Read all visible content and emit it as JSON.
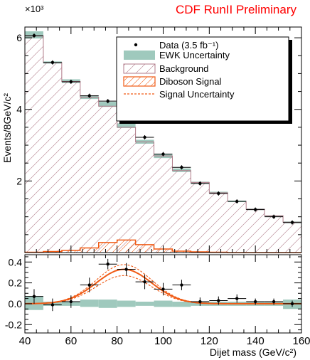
{
  "header": {
    "title": "CDF RunII Preliminary",
    "title_color": "#ff0000"
  },
  "chart_data": [
    {
      "type": "area",
      "panel": "main",
      "ylabel": "Events/8GeV/c²",
      "y_multiplier": "×10³",
      "ylim": [
        0,
        6.3
      ],
      "yticks": [
        2,
        4,
        6
      ],
      "xlim": [
        40,
        160
      ],
      "bin_edges": [
        40,
        48,
        56,
        64,
        72,
        80,
        88,
        96,
        104,
        112,
        120,
        128,
        136,
        144,
        152,
        160
      ],
      "series": [
        {
          "name": "Data (3.5 fb⁻¹)",
          "style": "points",
          "x": [
            44,
            52,
            60,
            68,
            76,
            84,
            92,
            100,
            108,
            116,
            124,
            132,
            140,
            148,
            156
          ],
          "y": [
            6.06,
            5.31,
            4.77,
            4.38,
            4.23,
            3.76,
            3.22,
            2.75,
            2.38,
            1.93,
            1.65,
            1.43,
            1.2,
            1.0,
            0.84
          ],
          "yerr": 0.06
        },
        {
          "name": "EWK Uncertainty",
          "style": "band",
          "color": "#9fc9bd",
          "lower": [
            5.98,
            5.28,
            4.74,
            4.29,
            4.07,
            3.48,
            3.04,
            2.64,
            2.25,
            1.93,
            1.64,
            1.41,
            1.19,
            1.01,
            0.82
          ],
          "upper": [
            6.18,
            5.34,
            4.84,
            4.37,
            4.21,
            3.61,
            3.15,
            2.76,
            2.35,
            1.98,
            1.7,
            1.45,
            1.23,
            1.04,
            0.87
          ]
        },
        {
          "name": "Background",
          "style": "hatched-step",
          "color": "#b07a88",
          "values": [
            6.05,
            5.31,
            4.78,
            4.34,
            4.09,
            3.5,
            3.09,
            2.7,
            2.29,
            1.96,
            1.67,
            1.43,
            1.21,
            1.03,
            0.85
          ]
        },
        {
          "name": "Diboson Signal",
          "style": "hatched-step",
          "color": "#f05a14",
          "values": [
            0.01,
            0.03,
            0.06,
            0.13,
            0.28,
            0.35,
            0.22,
            0.1,
            0.04,
            0.02,
            0.01,
            0.0,
            0.0,
            0.0,
            0.0
          ]
        },
        {
          "name": "Signal Uncertainty",
          "style": "dashed",
          "color": "#f05a14"
        }
      ]
    },
    {
      "type": "scatter",
      "panel": "ratio",
      "xlabel": "Dijet mass (GeV/c²)",
      "xlim": [
        40,
        160
      ],
      "xticks": [
        40,
        60,
        80,
        100,
        120,
        140,
        160
      ],
      "ylim": [
        -0.28,
        0.47
      ],
      "yticks": [
        -0.2,
        0.0,
        0.2,
        0.4
      ],
      "ytick_labels": [
        "-0.2",
        "0.0",
        "0.2",
        "0.4"
      ],
      "points": {
        "x": [
          44,
          52,
          60,
          68,
          76,
          84,
          92,
          100,
          108,
          116,
          124,
          132,
          140,
          148,
          156
        ],
        "y": [
          0.07,
          -0.01,
          0.02,
          0.18,
          0.38,
          0.33,
          0.21,
          0.14,
          0.18,
          0.02,
          0.03,
          0.05,
          0.02,
          0.02,
          0.0
        ],
        "yerr": [
          0.07,
          0.06,
          0.06,
          0.07,
          0.05,
          0.06,
          0.07,
          0.06,
          0.05,
          0.04,
          0.04,
          0.04,
          0.03,
          0.03,
          0.03
        ]
      },
      "band": {
        "lower": [
          -0.06,
          -0.02,
          -0.02,
          -0.03,
          -0.04,
          -0.03,
          -0.02,
          -0.03,
          -0.03,
          -0.02,
          -0.02,
          -0.02,
          -0.02,
          -0.02,
          -0.05
        ],
        "upper": [
          0.07,
          0.02,
          0.02,
          0.04,
          0.04,
          0.03,
          0.02,
          0.03,
          0.02,
          0.02,
          0.02,
          0.02,
          0.02,
          0.02,
          0.04
        ]
      },
      "signal_curve": {
        "mean": 83,
        "sigma": 12,
        "amplitude": 0.33,
        "amp_low": 0.27,
        "amp_high": 0.375
      }
    }
  ]
}
